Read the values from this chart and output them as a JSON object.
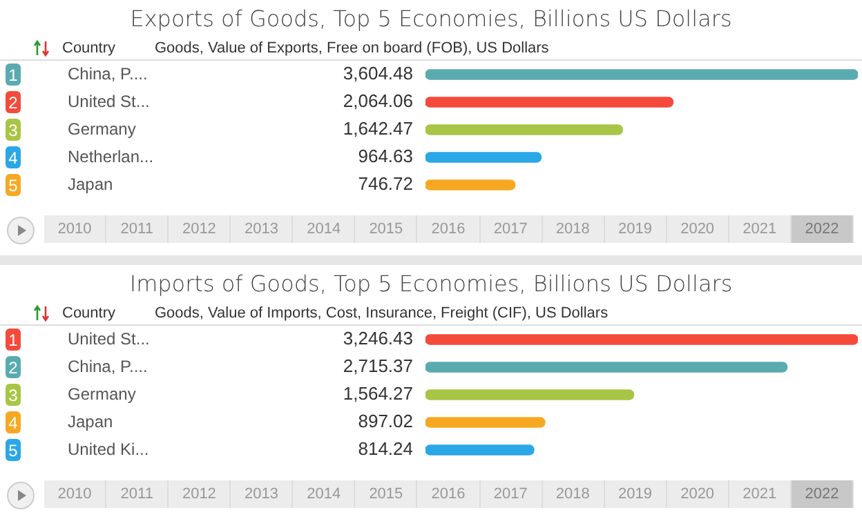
{
  "chart_data": [
    {
      "type": "bar",
      "orientation": "horizontal",
      "title": "Exports of Goods, Top 5 Economies, Billions US Dollars",
      "ylabel": "Country",
      "xlabel": "Goods, Value of Exports, Free on board (FOB), US Dollars",
      "categories": [
        "China, P....",
        "United St...",
        "Germany",
        "Netherlan...",
        "Japan"
      ],
      "values": [
        3604.48,
        2064.06,
        1642.47,
        964.63,
        746.72
      ],
      "value_labels": [
        "3,604.48",
        "2,064.06",
        "1,642.47",
        "964.63",
        "746.72"
      ],
      "colors": [
        "#5aabb0",
        "#f44a3b",
        "#a9c545",
        "#2aa7e6",
        "#f7a823"
      ],
      "annotations": [
        "1",
        "2",
        "3",
        "4",
        "5",
        "2010",
        "2011",
        "2012",
        "2013",
        "2014",
        "2015",
        "2016",
        "2017",
        "2018",
        "2019",
        "2020",
        "2021",
        "2022"
      ]
    },
    {
      "type": "bar",
      "orientation": "horizontal",
      "title": "Imports of Goods, Top 5 Economies, Billions US Dollars",
      "ylabel": "Country",
      "xlabel": "Goods, Value of Imports, Cost, Insurance, Freight (CIF), US Dollars",
      "categories": [
        "United St...",
        "China, P....",
        "Germany",
        "Japan",
        "United Ki..."
      ],
      "values": [
        3246.43,
        2715.37,
        1564.27,
        897.02,
        814.24
      ],
      "value_labels": [
        "3,246.43",
        "2,715.37",
        "1,564.27",
        "897.02",
        "814.24"
      ],
      "colors": [
        "#f44a3b",
        "#5aabb0",
        "#a9c545",
        "#f7a823",
        "#2aa7e6"
      ],
      "annotations": [
        "1",
        "2",
        "3",
        "4",
        "5",
        "2010",
        "2011",
        "2012",
        "2013",
        "2014",
        "2015",
        "2016",
        "2017",
        "2018",
        "2019",
        "2020",
        "2021",
        "2022"
      ]
    }
  ]
}
